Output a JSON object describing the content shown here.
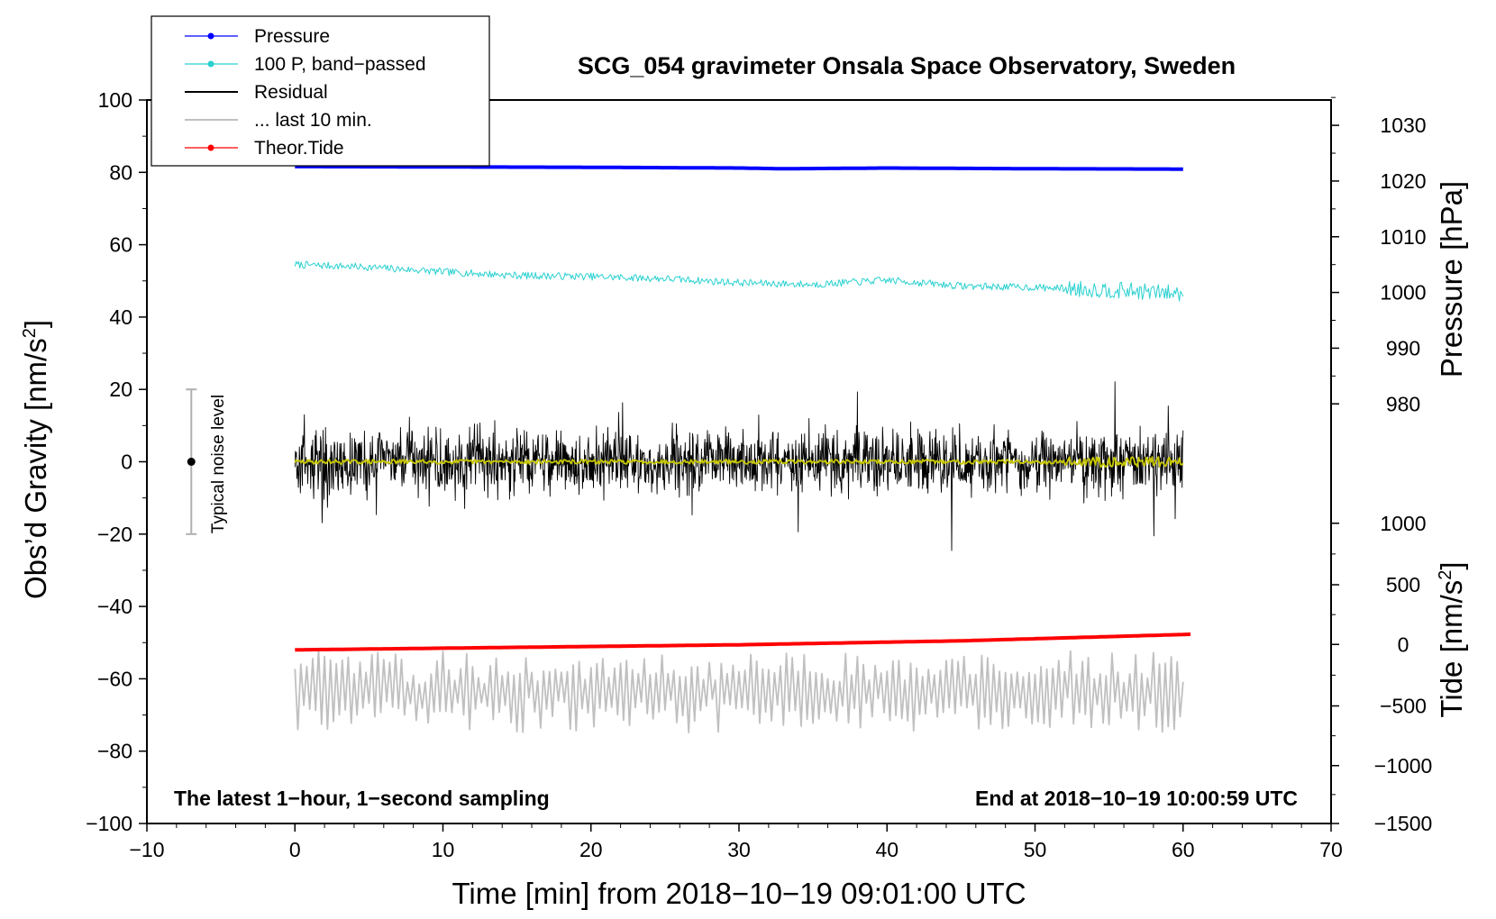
{
  "chart_data": {
    "type": "line",
    "title": "SCG_054 gravimeter Onsala Space Observatory, Sweden",
    "xlabel": "Time [min] from 2018−10−19 09:01:00 UTC",
    "ylabel_left": "Obs’d Gravity [nm/s",
    "ylabel_left_sup": "2",
    "ylabel_left_end": "]",
    "ylabel_right_top": "Pressure [hPa]",
    "ylabel_right_bottom": "Tide [nm/s",
    "ylabel_right_bottom_sup": "2",
    "ylabel_right_bottom_end": "]",
    "xlim": [
      -10,
      70
    ],
    "ylim_left": [
      -100,
      100
    ],
    "x_ticks": [
      -10,
      0,
      10,
      20,
      30,
      40,
      50,
      60,
      70
    ],
    "x_tick_labels": [
      "−10",
      "0",
      "10",
      "20",
      "30",
      "40",
      "50",
      "60",
      "70"
    ],
    "y_ticks_left": [
      100,
      80,
      60,
      40,
      20,
      0,
      -20,
      -40,
      -60,
      -80,
      -100
    ],
    "y_tick_labels_left": [
      "100",
      "80",
      "60",
      "40",
      "20",
      "0",
      "−20",
      "−40",
      "−60",
      "−80",
      "−100"
    ],
    "pressure_axis": {
      "ticks": [
        1030,
        1020,
        1010,
        1000,
        990,
        980
      ],
      "labels": [
        "1030",
        "1020",
        "1010",
        "1000",
        "990",
        "980"
      ],
      "left_equiv": [
        93,
        77.6,
        62.2,
        46.8,
        31.4,
        16
      ]
    },
    "tide_axis": {
      "ticks": [
        1000,
        500,
        0,
        -500,
        -1000,
        -1500
      ],
      "labels": [
        "1000",
        "500",
        "0",
        "−500",
        "−1000",
        "−1500"
      ],
      "left_equiv": [
        -17,
        -34,
        -50.5,
        -67.5,
        -84,
        -100
      ]
    },
    "series": [
      {
        "name": "Pressure",
        "color": "#0000ff",
        "style": "thick",
        "x": [
          0,
          10,
          20,
          30,
          33,
          40,
          50,
          60
        ],
        "y": [
          81.6,
          81.5,
          81.4,
          81.2,
          81.0,
          81.2,
          81.0,
          80.9
        ]
      },
      {
        "name": "100 P, band−passed",
        "color": "#2ad0d0",
        "style": "noisy",
        "noise_amp": 1.0,
        "seed": 7,
        "x": [
          0,
          5,
          10,
          15,
          20,
          25,
          30,
          35,
          40,
          45,
          50,
          55,
          60
        ],
        "y": [
          54.5,
          53.8,
          52.5,
          51.5,
          51.2,
          50.6,
          49.5,
          49.0,
          50.2,
          48.6,
          48.2,
          47.5,
          46.5
        ]
      },
      {
        "name": "Residual",
        "color": "#000000",
        "style": "residual",
        "amp": 8.5,
        "seed": 13,
        "x": [
          0,
          60
        ],
        "y": [
          0,
          0
        ]
      },
      {
        "name": "Residual smoothed",
        "color": "#c8c800",
        "style": "noisy",
        "noise_amp": 0.6,
        "seed": 29,
        "x": [
          0,
          60
        ],
        "y": [
          0,
          0
        ]
      },
      {
        "name": "... last 10 min.",
        "color": "#c0c0c0",
        "style": "oscillating",
        "amp": 8.0,
        "seed": 41,
        "x": [
          0,
          60
        ],
        "y": [
          -63.5,
          -63.5
        ]
      },
      {
        "name": "Theor.Tide",
        "color": "#ff0000",
        "style": "thick",
        "x": [
          0,
          15,
          30,
          45,
          60.5
        ],
        "y": [
          -52,
          -51.3,
          -50.6,
          -49.5,
          -47.7
        ]
      }
    ],
    "legend": [
      {
        "label": "Pressure",
        "color": "#0000ff",
        "marker": true
      },
      {
        "label": "100 P, band−passed",
        "color": "#2ad0d0",
        "marker": true
      },
      {
        "label": "Residual",
        "color": "#000000",
        "marker": false
      },
      {
        "label": "... last 10 min.",
        "color": "#c0c0c0",
        "marker": false
      },
      {
        "label": "Theor.Tide",
        "color": "#ff0000",
        "marker": true
      }
    ],
    "legend_position": "top-left",
    "noise_bar": {
      "label": "Typical noise level",
      "x": -7,
      "y": 0,
      "low": -20,
      "high": 20
    },
    "annotation_left": "The latest 1−hour, 1−second sampling",
    "annotation_right": "End at 2018−10−19 10:00:59 UTC"
  }
}
